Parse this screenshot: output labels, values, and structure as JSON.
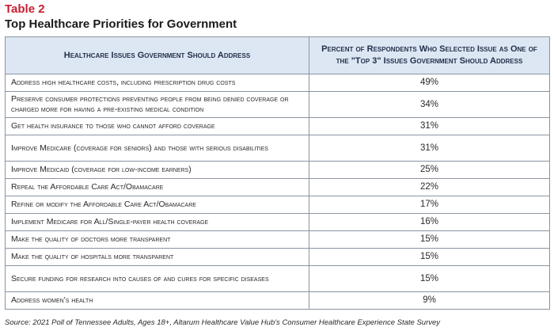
{
  "table_label": "Table 2",
  "title": "Top Healthcare Priorities for Government",
  "headers": [
    "Healthcare Issues Government Should Address",
    "Percent of Respondents Who Selected Issue as One of the \"Top 3\" Issues Government Should Address"
  ],
  "rows": [
    {
      "issue": "Address high healthcare costs, including prescription drug costs",
      "percent": "49%",
      "lines": 1
    },
    {
      "issue": "Preserve consumer protections preventing people from being denied coverage or charged more for having a pre-existing medical condition",
      "percent": "34%",
      "lines": 2
    },
    {
      "issue": "Get health insurance to those who cannot afford coverage",
      "percent": "31%",
      "lines": 1
    },
    {
      "issue": "Improve Medicare (coverage for seniors) and those with serious disabilities",
      "percent": "31%",
      "lines": 2
    },
    {
      "issue": "Improve Medicaid (coverage for low-income earners)",
      "percent": "25%",
      "lines": 1
    },
    {
      "issue": "Repeal the Affordable Care Act/Obamacare",
      "percent": "22%",
      "lines": 1
    },
    {
      "issue": "Refine or modify the Affordable Care Act/Obamacare",
      "percent": "17%",
      "lines": 1
    },
    {
      "issue": "Implement Medicare for All/Single-payer health coverage",
      "percent": "16%",
      "lines": 1
    },
    {
      "issue": "Make the quality of doctors more transparent",
      "percent": "15%",
      "lines": 1
    },
    {
      "issue": "Make the quality of hospitals more transparent",
      "percent": "15%",
      "lines": 1
    },
    {
      "issue": "Secure funding for research into causes of and cures for specific diseases",
      "percent": "15%",
      "lines": 2
    },
    {
      "issue": "Address women's health",
      "percent": "9%",
      "lines": 1
    }
  ],
  "source": "Source: 2021 Poll of Tennessee Adults, Ages 18+, Altarum Healthcare Value Hub's Consumer Healthcare Experience State Survey"
}
